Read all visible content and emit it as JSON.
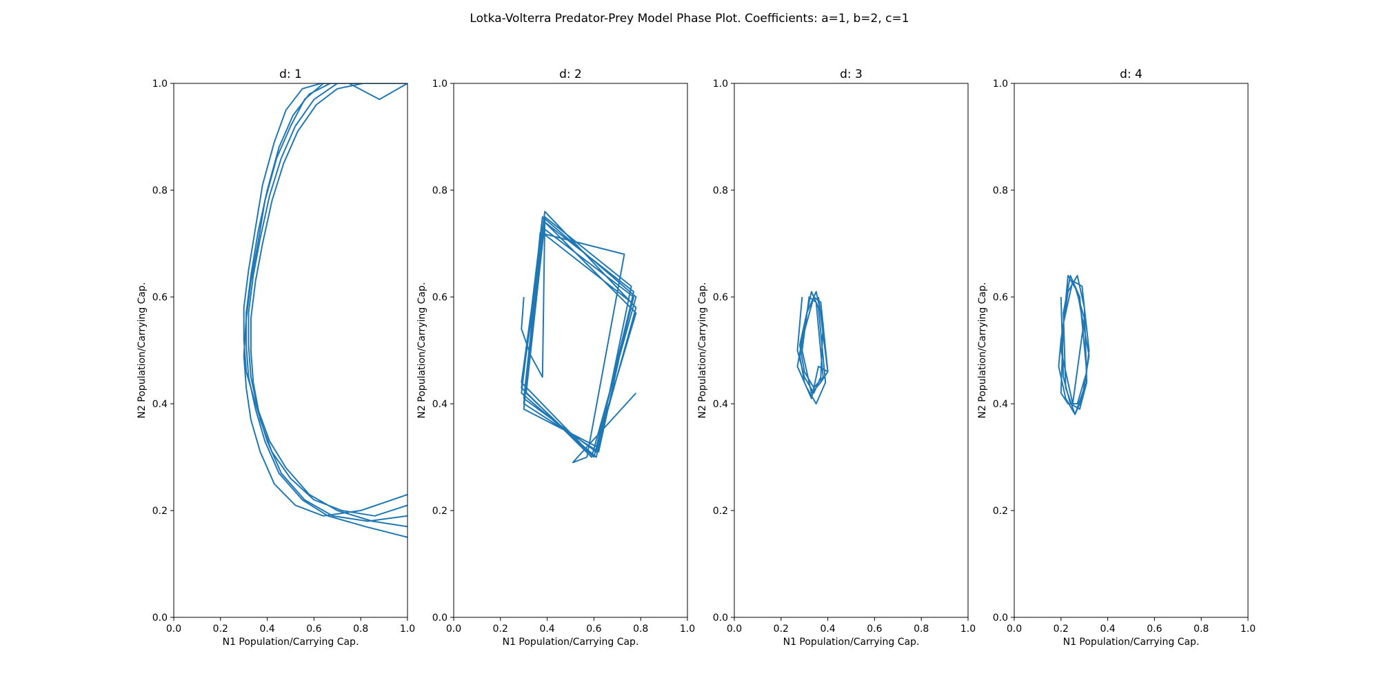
{
  "figure_title": "Lotka-Volterra Predator-Prey Model Phase Plot. Coefficients: a=1, b=2, c=1",
  "line_color": "#1f77b4",
  "chart_data": [
    {
      "type": "line",
      "title": "d: 1",
      "xlabel": "N1 Population/Carrying Cap.",
      "ylabel": "N2 Population/Carrying Cap.",
      "xlim": [
        0,
        1
      ],
      "ylim": [
        0,
        1
      ],
      "xticks": [
        "0.0",
        "0.2",
        "0.4",
        "0.6",
        "0.8",
        "1.0"
      ],
      "yticks": [
        "0.0",
        "0.2",
        "0.4",
        "0.6",
        "0.8",
        "1.0"
      ],
      "grid": false,
      "series": [
        {
          "x": [
            1.0,
            0.82,
            0.66,
            0.55,
            0.45,
            0.39,
            0.35,
            0.32,
            0.31,
            0.31,
            0.33,
            0.36,
            0.4,
            0.45,
            0.51,
            0.58,
            0.67,
            0.78,
            0.9,
            1.0
          ],
          "y": [
            0.15,
            0.17,
            0.19,
            0.22,
            0.27,
            0.33,
            0.39,
            0.45,
            0.51,
            0.57,
            0.64,
            0.72,
            0.8,
            0.88,
            0.94,
            0.98,
            1.0,
            1.0,
            1.0,
            1.0
          ]
        },
        {
          "x": [
            1.0,
            0.85,
            0.7,
            0.58,
            0.48,
            0.41,
            0.36,
            0.33,
            0.32,
            0.32,
            0.34,
            0.37,
            0.41,
            0.46,
            0.52,
            0.6,
            0.7,
            0.82,
            0.96
          ],
          "y": [
            0.17,
            0.18,
            0.2,
            0.23,
            0.28,
            0.33,
            0.39,
            0.45,
            0.51,
            0.57,
            0.64,
            0.71,
            0.79,
            0.86,
            0.92,
            0.97,
            1.0,
            1.0,
            1.0
          ]
        },
        {
          "x": [
            1.0,
            0.83,
            0.68,
            0.56,
            0.46,
            0.4,
            0.35,
            0.31,
            0.3,
            0.3,
            0.32,
            0.35,
            0.38,
            0.43,
            0.48,
            0.55,
            0.63,
            0.72
          ],
          "y": [
            0.19,
            0.18,
            0.19,
            0.22,
            0.27,
            0.33,
            0.4,
            0.46,
            0.52,
            0.58,
            0.65,
            0.73,
            0.81,
            0.89,
            0.95,
            0.99,
            1.0,
            1.0
          ]
        },
        {
          "x": [
            1.0,
            0.86,
            0.72,
            0.6,
            0.5,
            0.42,
            0.37,
            0.34,
            0.33,
            0.33,
            0.35,
            0.38,
            0.42,
            0.47,
            0.53,
            0.61,
            0.7,
            0.81
          ],
          "y": [
            0.21,
            0.19,
            0.2,
            0.22,
            0.26,
            0.31,
            0.37,
            0.44,
            0.5,
            0.56,
            0.63,
            0.7,
            0.78,
            0.85,
            0.91,
            0.96,
            0.99,
            1.0
          ]
        },
        {
          "x": [
            1.0,
            0.8,
            0.64,
            0.52,
            0.43,
            0.37,
            0.33,
            0.31,
            0.3,
            0.31,
            0.33,
            0.36,
            0.39,
            0.44,
            0.5,
            0.56,
            0.64,
            0.75,
            0.88,
            1.0
          ],
          "y": [
            0.23,
            0.2,
            0.19,
            0.21,
            0.25,
            0.31,
            0.37,
            0.43,
            0.49,
            0.56,
            0.63,
            0.7,
            0.78,
            0.86,
            0.92,
            0.97,
            1.0,
            1.0,
            0.97,
            1.0
          ]
        }
      ]
    },
    {
      "type": "line",
      "title": "d: 2",
      "xlabel": "N1 Population/Carrying Cap.",
      "ylabel": "N2 Population/Carrying Cap.",
      "xlim": [
        0,
        1
      ],
      "ylim": [
        0,
        1
      ],
      "xticks": [
        "0.0",
        "0.2",
        "0.4",
        "0.6",
        "0.8",
        "1.0"
      ],
      "yticks": [
        "0.0",
        "0.2",
        "0.4",
        "0.6",
        "0.8",
        "1.0"
      ],
      "grid": false,
      "series": [
        {
          "x": [
            0.3,
            0.29,
            0.33,
            0.38,
            0.39,
            0.76,
            0.61,
            0.29,
            0.38,
            0.78,
            0.59,
            0.29,
            0.39,
            0.77,
            0.62,
            0.3,
            0.38,
            0.76,
            0.6,
            0.29,
            0.39,
            0.78,
            0.61,
            0.3,
            0.38,
            0.77,
            0.6,
            0.31,
            0.39,
            0.78,
            0.61,
            0.3,
            0.37,
            0.73,
            0.57,
            0.51,
            0.53,
            0.78
          ],
          "y": [
            0.6,
            0.54,
            0.49,
            0.45,
            0.75,
            0.62,
            0.3,
            0.42,
            0.75,
            0.6,
            0.3,
            0.43,
            0.74,
            0.61,
            0.31,
            0.4,
            0.72,
            0.59,
            0.3,
            0.44,
            0.76,
            0.58,
            0.31,
            0.41,
            0.73,
            0.6,
            0.3,
            0.42,
            0.74,
            0.57,
            0.32,
            0.39,
            0.72,
            0.68,
            0.3,
            0.29,
            0.3,
            0.42
          ]
        }
      ]
    },
    {
      "type": "line",
      "title": "d: 3",
      "xlabel": "N1 Population/Carrying Cap.",
      "ylabel": "N2 Population/Carrying Cap.",
      "xlim": [
        0,
        1
      ],
      "ylim": [
        0,
        1
      ],
      "xticks": [
        "0.0",
        "0.2",
        "0.4",
        "0.6",
        "0.8",
        "1.0"
      ],
      "yticks": [
        "0.0",
        "0.2",
        "0.4",
        "0.6",
        "0.8",
        "1.0"
      ],
      "grid": false,
      "series": [
        {
          "x": [
            0.29,
            0.28,
            0.27,
            0.3,
            0.34,
            0.37,
            0.38,
            0.35,
            0.31,
            0.28,
            0.3,
            0.33,
            0.36,
            0.4,
            0.37,
            0.34,
            0.29,
            0.27,
            0.31,
            0.35,
            0.39,
            0.36,
            0.33,
            0.28,
            0.3,
            0.34,
            0.38,
            0.35,
            0.32,
            0.29,
            0.33,
            0.37,
            0.4,
            0.36
          ],
          "y": [
            0.6,
            0.55,
            0.5,
            0.45,
            0.42,
            0.45,
            0.55,
            0.61,
            0.57,
            0.49,
            0.44,
            0.41,
            0.47,
            0.46,
            0.59,
            0.6,
            0.52,
            0.47,
            0.43,
            0.4,
            0.44,
            0.58,
            0.61,
            0.51,
            0.46,
            0.43,
            0.45,
            0.59,
            0.6,
            0.5,
            0.42,
            0.44,
            0.46,
            0.6
          ]
        }
      ]
    },
    {
      "type": "line",
      "title": "d: 4",
      "xlabel": "N1 Population/Carrying Cap.",
      "ylabel": "N2 Population/Carrying Cap.",
      "xlim": [
        0,
        1
      ],
      "ylim": [
        0,
        1
      ],
      "xticks": [
        "0.0",
        "0.2",
        "0.4",
        "0.6",
        "0.8",
        "1.0"
      ],
      "yticks": [
        "0.0",
        "0.2",
        "0.4",
        "0.6",
        "0.8",
        "1.0"
      ],
      "grid": false,
      "series": [
        {
          "x": [
            0.2,
            0.21,
            0.24,
            0.28,
            0.31,
            0.3,
            0.27,
            0.23,
            0.2,
            0.19,
            0.22,
            0.26,
            0.3,
            0.32,
            0.29,
            0.25,
            0.21,
            0.2,
            0.23,
            0.27,
            0.31,
            0.28,
            0.24,
            0.21,
            0.22,
            0.26,
            0.29,
            0.32,
            0.27,
            0.23,
            0.2,
            0.25,
            0.3,
            0.26
          ],
          "y": [
            0.6,
            0.45,
            0.4,
            0.39,
            0.44,
            0.58,
            0.64,
            0.61,
            0.52,
            0.47,
            0.41,
            0.38,
            0.43,
            0.5,
            0.62,
            0.63,
            0.55,
            0.42,
            0.4,
            0.4,
            0.46,
            0.6,
            0.64,
            0.57,
            0.43,
            0.38,
            0.41,
            0.49,
            0.61,
            0.64,
            0.5,
            0.4,
            0.56,
            0.62
          ]
        }
      ]
    }
  ]
}
